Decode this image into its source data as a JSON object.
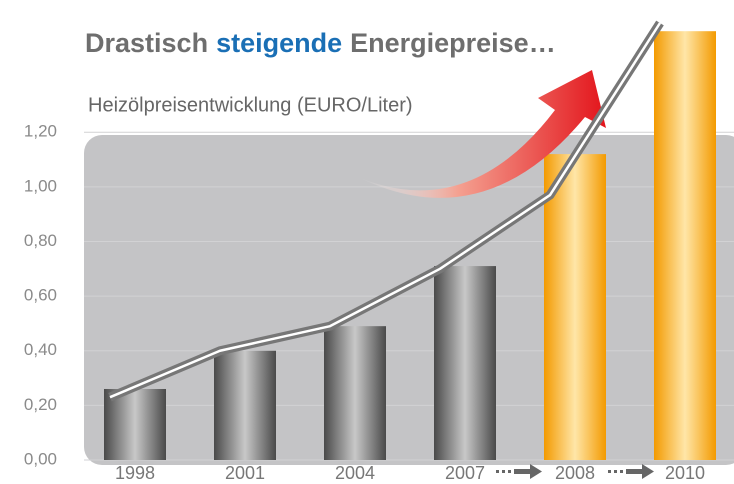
{
  "chart_data": {
    "type": "bar",
    "title_parts": [
      "Drastisch",
      "steigende",
      "Energiepreise…"
    ],
    "title_color": "#6e6e6e",
    "title_highlight_color": "#1a6fb5",
    "subtitle": "Heizölpreisentwicklung (EURO/Liter)",
    "categories": [
      "1998",
      "2001",
      "2004",
      "2007",
      "2008",
      "2010"
    ],
    "values": [
      0.26,
      0.4,
      0.49,
      0.71,
      1.12,
      1.57
    ],
    "colors": [
      "gray",
      "gray",
      "gray",
      "gray",
      "orange",
      "orange"
    ],
    "line": {
      "values": [
        0.23,
        0.4,
        0.49,
        0.7,
        0.97,
        1.6
      ],
      "color": "#777777"
    },
    "ylim": [
      0,
      1.6
    ],
    "yticks": [
      {
        "value": 0,
        "label": "0,00"
      },
      {
        "value": 0.2,
        "label": "0,20"
      },
      {
        "value": 0.4,
        "label": "0,40"
      },
      {
        "value": 0.6,
        "label": "0,60"
      },
      {
        "value": 0.8,
        "label": "0,80"
      },
      {
        "value": 1.0,
        "label": "1,00"
      },
      {
        "value": 1.2,
        "label": "1,20"
      }
    ],
    "grid": true
  }
}
